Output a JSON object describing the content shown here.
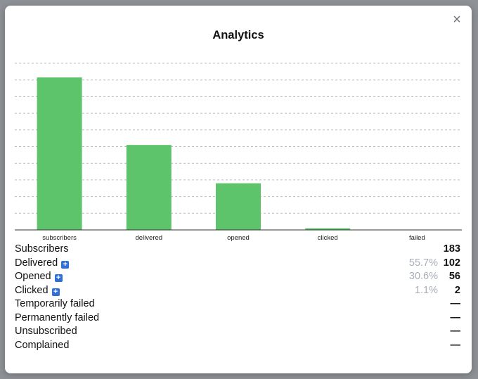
{
  "modal": {
    "title": "Analytics",
    "close_glyph": "×"
  },
  "chart_data": {
    "type": "bar",
    "categories": [
      "subscribers",
      "delivered",
      "opened",
      "clicked",
      "failed"
    ],
    "values": [
      183,
      102,
      56,
      2,
      0
    ],
    "ylim": [
      0,
      200
    ],
    "grid": true,
    "bar_color": "#5ec46b",
    "title": "",
    "xlabel": "",
    "ylabel": ""
  },
  "stats": [
    {
      "label": "Subscribers",
      "pct": "",
      "value": "183",
      "expandable": false
    },
    {
      "label": "Delivered",
      "pct": "55.7%",
      "value": "102",
      "expandable": true
    },
    {
      "label": "Opened",
      "pct": "30.6%",
      "value": "56",
      "expandable": true
    },
    {
      "label": "Clicked",
      "pct": "1.1%",
      "value": "2",
      "expandable": true
    },
    {
      "label": "Temporarily failed",
      "pct": "",
      "value": "—",
      "expandable": false
    },
    {
      "label": "Permanently failed",
      "pct": "",
      "value": "—",
      "expandable": false
    },
    {
      "label": "Unsubscribed",
      "pct": "",
      "value": "—",
      "expandable": false
    },
    {
      "label": "Complained",
      "pct": "",
      "value": "—",
      "expandable": false
    }
  ],
  "icons": {
    "expand": "plus-icon",
    "close": "close-icon"
  },
  "colors": {
    "accent": "#2f6fd6",
    "bar": "#5ec46b",
    "muted_text": "#a8aeb6"
  }
}
